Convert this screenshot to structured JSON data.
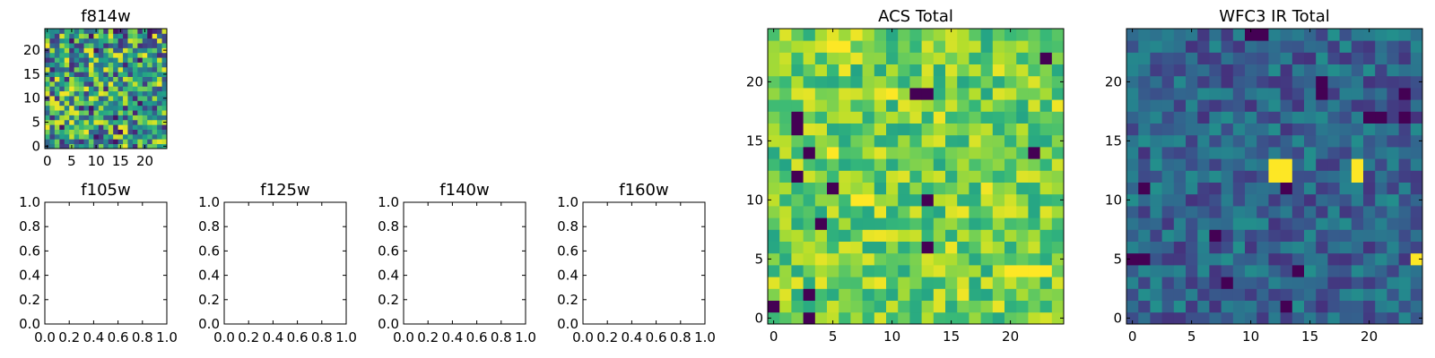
{
  "chart_data": [
    {
      "type": "heatmap",
      "title": "f814w",
      "grid_size": [
        25,
        25
      ],
      "xticks": [
        0,
        5,
        10,
        15,
        20
      ],
      "yticks": [
        0,
        5,
        10,
        15,
        20
      ],
      "xlim": [
        -0.5,
        24.5
      ],
      "ylim": [
        -0.5,
        24.5
      ],
      "colormap": "viridis",
      "pattern": "fine-grained noise, values mostly mid-to-high",
      "value_range": [
        0,
        1
      ]
    },
    {
      "type": "heatmap",
      "title": "f105w",
      "empty": true,
      "xlim": [
        0,
        1
      ],
      "ylim": [
        0,
        1
      ],
      "xticks": [
        "0.0",
        "0.2",
        "0.4",
        "0.6",
        "0.8",
        "1.0"
      ],
      "yticks": [
        "0.0",
        "0.2",
        "0.4",
        "0.6",
        "0.8",
        "1.0"
      ]
    },
    {
      "type": "heatmap",
      "title": "f125w",
      "empty": true,
      "xlim": [
        0,
        1
      ],
      "ylim": [
        0,
        1
      ],
      "xticks": [
        "0.0",
        "0.2",
        "0.4",
        "0.6",
        "0.8",
        "1.0"
      ],
      "yticks": [
        "0.0",
        "0.2",
        "0.4",
        "0.6",
        "0.8",
        "1.0"
      ]
    },
    {
      "type": "heatmap",
      "title": "f140w",
      "empty": true,
      "xlim": [
        0,
        1
      ],
      "ylim": [
        0,
        1
      ],
      "xticks": [
        "0.0",
        "0.2",
        "0.4",
        "0.6",
        "0.8",
        "1.0"
      ],
      "yticks": [
        "0.0",
        "0.2",
        "0.4",
        "0.6",
        "0.8",
        "1.0"
      ]
    },
    {
      "type": "heatmap",
      "title": "f160w",
      "empty": true,
      "xlim": [
        0,
        1
      ],
      "ylim": [
        0,
        1
      ],
      "xticks": [
        "0.0",
        "0.2",
        "0.4",
        "0.6",
        "0.8",
        "1.0"
      ],
      "yticks": [
        "0.0",
        "0.2",
        "0.4",
        "0.6",
        "0.8",
        "1.0"
      ]
    },
    {
      "type": "heatmap",
      "title": "ACS Total",
      "grid_size": [
        25,
        25
      ],
      "xticks": [
        0,
        5,
        10,
        15,
        20
      ],
      "yticks": [
        0,
        5,
        10,
        15,
        20
      ],
      "xlim": [
        -0.5,
        24.5
      ],
      "ylim": [
        -0.5,
        24.5
      ],
      "colormap": "viridis",
      "pattern": "noise, values mostly green-to-yellow with a few dark pixels",
      "value_range": [
        0,
        1
      ],
      "dark_pixels": [
        [
          3,
          0
        ],
        [
          0,
          1
        ],
        [
          3,
          2
        ],
        [
          13,
          6
        ],
        [
          4,
          8
        ],
        [
          13,
          10
        ],
        [
          5,
          11
        ],
        [
          2,
          12
        ],
        [
          3,
          14
        ],
        [
          22,
          14
        ],
        [
          2,
          16
        ],
        [
          2,
          17
        ],
        [
          12,
          19
        ],
        [
          13,
          19
        ],
        [
          23,
          22
        ]
      ],
      "bright_pixels": [
        [
          20,
          4
        ],
        [
          21,
          4
        ],
        [
          22,
          4
        ],
        [
          23,
          4
        ],
        [
          7,
          10
        ],
        [
          8,
          10
        ],
        [
          5,
          14
        ],
        [
          10,
          19
        ],
        [
          5,
          23
        ],
        [
          6,
          23
        ]
      ]
    },
    {
      "type": "heatmap",
      "title": "WFC3 IR Total",
      "grid_size": [
        25,
        25
      ],
      "xticks": [
        0,
        5,
        10,
        15,
        20
      ],
      "yticks": [
        0,
        5,
        10,
        15,
        20
      ],
      "xlim": [
        -0.5,
        24.5
      ],
      "ylim": [
        -0.5,
        24.5
      ],
      "colormap": "viridis",
      "pattern": "noise, values mostly dark blue-to-teal with a few yellow hot pixels",
      "value_range": [
        0,
        1
      ],
      "dark_pixels": [
        [
          0,
          5
        ],
        [
          1,
          5
        ],
        [
          14,
          4
        ],
        [
          13,
          1
        ],
        [
          1,
          11
        ],
        [
          13,
          11
        ],
        [
          16,
          19
        ],
        [
          16,
          20
        ],
        [
          20,
          17
        ],
        [
          21,
          17
        ],
        [
          23,
          17
        ],
        [
          23,
          19
        ],
        [
          10,
          24
        ],
        [
          11,
          24
        ],
        [
          7,
          7
        ],
        [
          8,
          3
        ]
      ],
      "bright_pixels": [
        [
          12,
          12
        ],
        [
          13,
          12
        ],
        [
          12,
          13
        ],
        [
          13,
          13
        ],
        [
          19,
          12
        ],
        [
          19,
          13
        ],
        [
          24,
          5
        ]
      ]
    }
  ]
}
